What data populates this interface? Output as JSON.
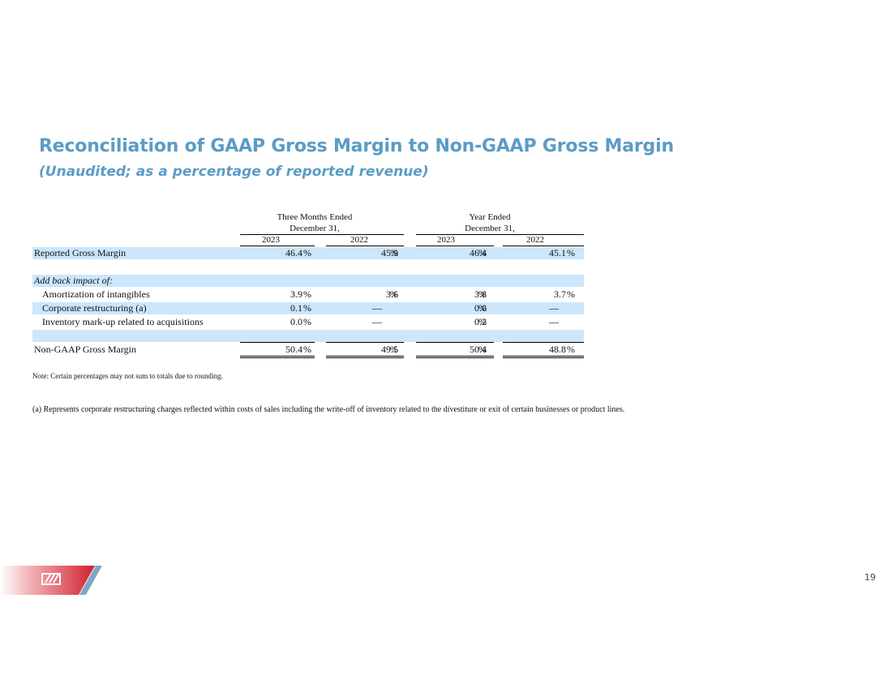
{
  "title": "Reconciliation of GAAP Gross Margin to Non-GAAP Gross Margin",
  "subtitle": "(Unaudited; as a percentage of reported revenue)",
  "table": {
    "group_headers": [
      {
        "line1": "Three Months Ended",
        "line2": "December 31,"
      },
      {
        "line1": "Year Ended",
        "line2": "December 31,"
      }
    ],
    "years": [
      "2023",
      "2022",
      "2023",
      "2022"
    ],
    "pct_symbol": "%",
    "rows": [
      {
        "label": "Reported Gross Margin",
        "values": [
          "46.4",
          "45.9",
          "46.4",
          "45.1"
        ]
      },
      {
        "label": "Add back impact of:",
        "values": []
      },
      {
        "label": "Amortization of intangibles",
        "values": [
          "3.9",
          "3.6",
          "3.8",
          "3.7"
        ]
      },
      {
        "label": "Corporate restructuring (a)",
        "values": [
          "0.1",
          "—",
          "0.0",
          "—"
        ]
      },
      {
        "label": "Inventory mark-up related to acquisitions",
        "values": [
          "0.0",
          "—",
          "0.2",
          "—"
        ]
      },
      {
        "label": "Non-GAAP Gross Margin",
        "values": [
          "50.4",
          "49.5",
          "50.4",
          "48.8"
        ]
      }
    ]
  },
  "note": "Note: Certain percentages may not sum to totals due to rounding.",
  "footnote": "(a)  Represents corporate restructuring charges reflected within costs of sales including the write-off of inventory related to the divestiture or exit of certain businesses or product lines.",
  "page_number": "19",
  "colors": {
    "title": "#5a9cc6",
    "row_shade": "#cce6fb",
    "logo_red": "#d0202e",
    "logo_blue": "#7fa6c4"
  }
}
